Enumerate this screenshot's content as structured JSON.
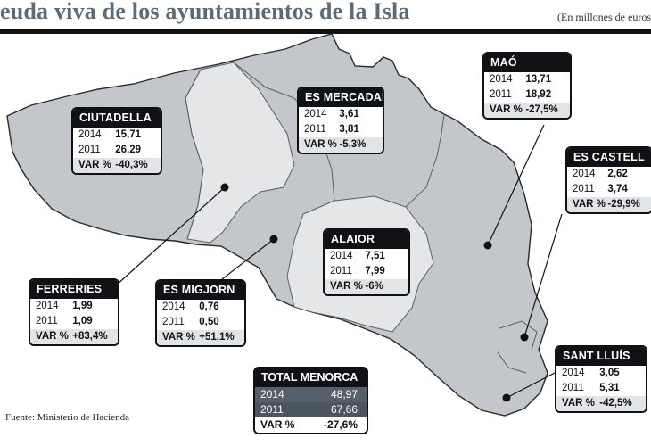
{
  "title": "euda viva de los ayuntamientos de la Isla",
  "units": "(En millones de euros)",
  "source": "Fuente: Ministerio de Hacienda",
  "row_labels": {
    "y2014": "2014",
    "y2011": "2011",
    "var": "VAR %"
  },
  "municipalities": [
    {
      "name": "CIUTADELLA",
      "v2014": "15,71",
      "v2011": "26,29",
      "var": "-40,3%"
    },
    {
      "name": "ES MERCADAL",
      "v2014": "3,61",
      "v2011": "3,81",
      "var": "-5,3%"
    },
    {
      "name": "MAÓ",
      "v2014": "13,71",
      "v2011": "18,92",
      "var": "-27,5%"
    },
    {
      "name": "ES CASTELL",
      "v2014": "2,62",
      "v2011": "3,74",
      "var": "-29,9%"
    },
    {
      "name": "ALAIOR",
      "v2014": "7,51",
      "v2011": "7,99",
      "var": "-6%"
    },
    {
      "name": "FERRERIES",
      "v2014": "1,99",
      "v2011": "1,09",
      "var": "+83,4%"
    },
    {
      "name": "ES MIGJORN",
      "v2014": "0,76",
      "v2011": "0,50",
      "var": "+51,1%"
    },
    {
      "name": "SANT LLUÍS",
      "v2014": "3,05",
      "v2011": "5,31",
      "var": "-42,5%"
    }
  ],
  "total": {
    "name": "TOTAL MENORCA",
    "v2014": "48,97",
    "v2011": "67,66",
    "var": "-27,6%"
  },
  "colors": {
    "island": "#c3c7cb",
    "light_region": "#e4e6e8",
    "border": "#2a2a2a",
    "header": "#0f1114"
  }
}
